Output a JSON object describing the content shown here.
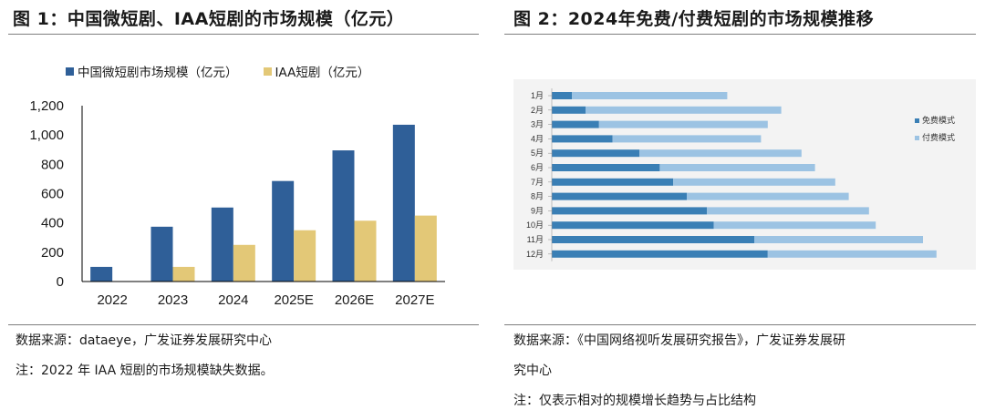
{
  "figure1": {
    "title": "图  1：中国微短剧、IAA短剧的市场规模（亿元）",
    "source": "数据来源：dataeye，广发证券发展研究中心",
    "note": "注：2022 年 IAA 短剧的市场规模缺失数据。"
  },
  "figure2": {
    "title": "图  2：2024年免费/付费短剧的市场规模推移",
    "source_line1": "数据来源：《中国网络视听发展研究报告》，广发证券发展研",
    "source_line2": "究中心",
    "note": "注：仅表示相对的规模增长趋势与占比结构"
  },
  "colors": {
    "bar_blue": "#2f5f98",
    "bar_gold": "#e3c877",
    "free_blue": "#3a7fb5",
    "paid_blue": "#9cc3e3"
  },
  "chart_data": [
    {
      "type": "bar",
      "title": "中国微短剧、IAA短剧的市场规模（亿元）",
      "categories": [
        "2022",
        "2023",
        "2024",
        "2025E",
        "2026E",
        "2027E"
      ],
      "series": [
        {
          "name": "中国微短剧市场规模（亿元）",
          "values": [
            100,
            374,
            505,
            686,
            895,
            1070
          ]
        },
        {
          "name": "IAA短剧（亿元）",
          "values": [
            null,
            100,
            250,
            350,
            415,
            450
          ]
        }
      ],
      "yticks": [
        "0",
        "200",
        "400",
        "600",
        "800",
        "1,000",
        "1,200"
      ],
      "ylim": [
        0,
        1200
      ],
      "legend": "top-left"
    },
    {
      "type": "bar",
      "orientation": "horizontal-stacked",
      "title": "2024年免费/付费短剧的市场规模推移",
      "categories": [
        "1月",
        "2月",
        "3月",
        "4月",
        "5月",
        "6月",
        "7月",
        "8月",
        "9月",
        "10月",
        "11月",
        "12月"
      ],
      "series": [
        {
          "name": "免费模式",
          "values": [
            3,
            5,
            7,
            9,
            13,
            16,
            18,
            20,
            23,
            24,
            30,
            32
          ]
        },
        {
          "name": "付费模式",
          "values": [
            23,
            29,
            25,
            22,
            24,
            23,
            24,
            24,
            24,
            24,
            25,
            25
          ]
        }
      ],
      "xlim": [
        0,
        60
      ],
      "legend": "right"
    }
  ]
}
